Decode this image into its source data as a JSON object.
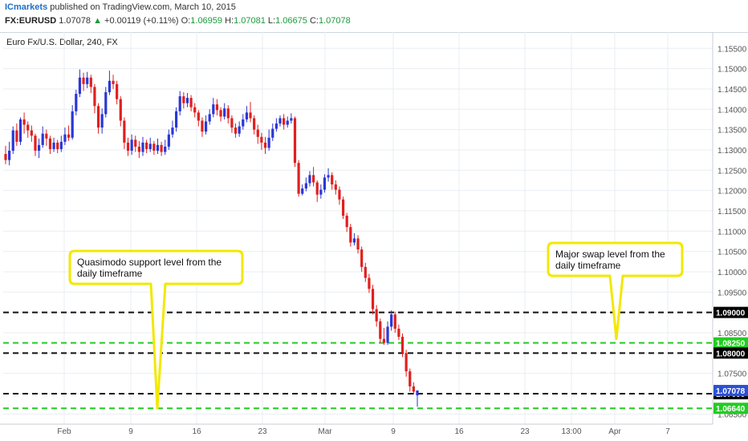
{
  "header": {
    "publisher": "ICmarkets",
    "published_text": "published on TradingView.com, March 10, 2015",
    "symbol": "FX:EURUSD",
    "last": "1.07078",
    "arrow_icon": "triangle-up-icon",
    "change": "+0.00119 (+0.11%)",
    "o_label": "O:",
    "o_value": "1.06959",
    "h_label": "H:",
    "h_value": "1.07081",
    "l_label": "L:",
    "l_value": "1.06675",
    "c_label": "C:",
    "c_value": "1.07078"
  },
  "colors": {
    "bull": "#2a37d6",
    "bear": "#e0201e",
    "black_line": "#111111",
    "green_line": "#22cc22",
    "callout_border": "#f2e800",
    "callout_fill": "#ffffff",
    "grid": "#e9edf2",
    "price_tag": "#2b50d6"
  },
  "chart_data": {
    "type": "candlestick",
    "title": "Euro Fx/U.S. Dollar, 240, FX",
    "ylim": [
      1.0625,
      1.159
    ],
    "y_ticks": [
      "1.15500",
      "1.15000",
      "1.14500",
      "1.14000",
      "1.13500",
      "1.13000",
      "1.12500",
      "1.12000",
      "1.11500",
      "1.11000",
      "1.10500",
      "1.10000",
      "1.09500",
      "1.09000",
      "1.08500",
      "1.08000",
      "1.07500",
      "1.07000",
      "1.06500"
    ],
    "x_ticks": [
      "Feb",
      "9",
      "16",
      "23",
      "Mar",
      "9",
      "16",
      "23",
      "13:00",
      "Apr",
      "7"
    ],
    "bars": [
      [
        1.129,
        1.1275,
        1.131,
        1.1265
      ],
      [
        1.1275,
        1.1298,
        1.132,
        1.1262
      ],
      [
        1.1298,
        1.1348,
        1.1358,
        1.129
      ],
      [
        1.1348,
        1.132,
        1.1365,
        1.131
      ],
      [
        1.132,
        1.1375,
        1.138,
        1.1312
      ],
      [
        1.1375,
        1.1362,
        1.1392,
        1.134
      ],
      [
        1.1362,
        1.1348,
        1.137,
        1.133
      ],
      [
        1.1348,
        1.1335,
        1.136,
        1.132
      ],
      [
        1.1335,
        1.1298,
        1.134,
        1.1285
      ],
      [
        1.1298,
        1.1312,
        1.1328,
        1.128
      ],
      [
        1.1312,
        1.134,
        1.1358,
        1.1305
      ],
      [
        1.134,
        1.1328,
        1.135,
        1.131
      ],
      [
        1.1328,
        1.1302,
        1.1335,
        1.129
      ],
      [
        1.1302,
        1.1318,
        1.133,
        1.1295
      ],
      [
        1.1318,
        1.1302,
        1.1325,
        1.1292
      ],
      [
        1.1302,
        1.132,
        1.1335,
        1.1295
      ],
      [
        1.132,
        1.1338,
        1.1355,
        1.1312
      ],
      [
        1.1338,
        1.133,
        1.136,
        1.1322
      ],
      [
        1.133,
        1.1395,
        1.141,
        1.1325
      ],
      [
        1.1395,
        1.1438,
        1.1448,
        1.1385
      ],
      [
        1.1438,
        1.1478,
        1.1498,
        1.143
      ],
      [
        1.1478,
        1.1462,
        1.149,
        1.1445
      ],
      [
        1.1462,
        1.1478,
        1.1492,
        1.1452
      ],
      [
        1.1478,
        1.1455,
        1.1485,
        1.144
      ],
      [
        1.1455,
        1.1408,
        1.1462,
        1.139
      ],
      [
        1.1408,
        1.1355,
        1.1415,
        1.134
      ],
      [
        1.1355,
        1.1388,
        1.1402,
        1.134
      ],
      [
        1.1388,
        1.1442,
        1.1455,
        1.138
      ],
      [
        1.1442,
        1.147,
        1.1495,
        1.1435
      ],
      [
        1.147,
        1.1462,
        1.1485,
        1.145
      ],
      [
        1.1462,
        1.1425,
        1.147,
        1.1412
      ],
      [
        1.1425,
        1.1372,
        1.1432,
        1.1358
      ],
      [
        1.1372,
        1.1318,
        1.138,
        1.1302
      ],
      [
        1.1318,
        1.1298,
        1.133,
        1.1285
      ],
      [
        1.1298,
        1.1325,
        1.1338,
        1.1288
      ],
      [
        1.1325,
        1.1308,
        1.1335,
        1.1295
      ],
      [
        1.1308,
        1.1295,
        1.1322,
        1.128
      ],
      [
        1.1295,
        1.1318,
        1.1332,
        1.1285
      ],
      [
        1.1318,
        1.1302,
        1.1325,
        1.1292
      ],
      [
        1.1302,
        1.1315,
        1.133,
        1.1295
      ],
      [
        1.1315,
        1.1298,
        1.1322,
        1.1288
      ],
      [
        1.1298,
        1.1312,
        1.1328,
        1.129
      ],
      [
        1.1312,
        1.1295,
        1.132,
        1.1285
      ],
      [
        1.1295,
        1.1308,
        1.1325,
        1.1288
      ],
      [
        1.1308,
        1.1338,
        1.135,
        1.13
      ],
      [
        1.1338,
        1.1355,
        1.1372,
        1.133
      ],
      [
        1.1355,
        1.1395,
        1.1405,
        1.1345
      ],
      [
        1.1395,
        1.1432,
        1.1445,
        1.1385
      ],
      [
        1.1432,
        1.1415,
        1.1442,
        1.1402
      ],
      [
        1.1415,
        1.1428,
        1.144,
        1.1405
      ],
      [
        1.1428,
        1.1405,
        1.1435,
        1.1395
      ],
      [
        1.1405,
        1.1392,
        1.1415,
        1.138
      ],
      [
        1.1392,
        1.1372,
        1.1398,
        1.1358
      ],
      [
        1.1372,
        1.1345,
        1.138,
        1.1332
      ],
      [
        1.1345,
        1.137,
        1.1385,
        1.1338
      ],
      [
        1.137,
        1.1388,
        1.14,
        1.1362
      ],
      [
        1.1388,
        1.1412,
        1.1428,
        1.138
      ],
      [
        1.1412,
        1.1398,
        1.1425,
        1.1385
      ],
      [
        1.1398,
        1.1382,
        1.1405,
        1.137
      ],
      [
        1.1382,
        1.1402,
        1.1415,
        1.1375
      ],
      [
        1.1402,
        1.1378,
        1.141,
        1.1365
      ],
      [
        1.1378,
        1.1355,
        1.1385,
        1.1342
      ],
      [
        1.1355,
        1.134,
        1.1365,
        1.133
      ],
      [
        1.134,
        1.1358,
        1.137,
        1.1332
      ],
      [
        1.1358,
        1.1375,
        1.1388,
        1.135
      ],
      [
        1.1375,
        1.1392,
        1.1408,
        1.1368
      ],
      [
        1.1392,
        1.1378,
        1.1418,
        1.1368
      ],
      [
        1.1378,
        1.135,
        1.1385,
        1.1338
      ],
      [
        1.135,
        1.1332,
        1.1362,
        1.1315
      ],
      [
        1.1332,
        1.1318,
        1.1342,
        1.13
      ],
      [
        1.1318,
        1.1305,
        1.1332,
        1.129
      ],
      [
        1.1305,
        1.133,
        1.135,
        1.1298
      ],
      [
        1.133,
        1.1352,
        1.1365,
        1.1322
      ],
      [
        1.1352,
        1.1365,
        1.1378,
        1.1345
      ],
      [
        1.1365,
        1.1378,
        1.1385,
        1.1358
      ],
      [
        1.1378,
        1.1362,
        1.1388,
        1.135
      ],
      [
        1.1362,
        1.1372,
        1.1382,
        1.1355
      ],
      [
        1.1372,
        1.1378,
        1.139,
        1.1365
      ],
      [
        1.1378,
        1.1268,
        1.1382,
        1.1258
      ],
      [
        1.1268,
        1.1192,
        1.1275,
        1.1185
      ],
      [
        1.1192,
        1.1205,
        1.1215,
        1.1188
      ],
      [
        1.1205,
        1.1218,
        1.1232,
        1.1198
      ],
      [
        1.1218,
        1.1238,
        1.1248,
        1.121
      ],
      [
        1.1238,
        1.122,
        1.1258,
        1.121
      ],
      [
        1.122,
        1.119,
        1.1225,
        1.1172
      ],
      [
        1.119,
        1.1202,
        1.1215,
        1.118
      ],
      [
        1.1202,
        1.1232,
        1.124,
        1.1195
      ],
      [
        1.1232,
        1.1238,
        1.1255,
        1.1222
      ],
      [
        1.1238,
        1.1215,
        1.1245,
        1.1202
      ],
      [
        1.1215,
        1.1202,
        1.1225,
        1.119
      ],
      [
        1.1202,
        1.1178,
        1.121,
        1.1165
      ],
      [
        1.1178,
        1.1138,
        1.1185,
        1.113
      ],
      [
        1.1138,
        1.111,
        1.1145,
        1.1098
      ],
      [
        1.111,
        1.1072,
        1.1118,
        1.1062
      ],
      [
        1.1072,
        1.1082,
        1.1095,
        1.1065
      ],
      [
        1.1082,
        1.1055,
        1.109,
        1.1045
      ],
      [
        1.1055,
        1.1012,
        1.1062,
        1.1
      ],
      [
        1.1012,
        1.0985,
        1.1022,
        1.0975
      ],
      [
        1.0985,
        1.0958,
        1.0995,
        1.0948
      ],
      [
        1.0958,
        1.0908,
        1.0968,
        1.0895
      ],
      [
        1.0908,
        1.0878,
        1.0918,
        1.0865
      ],
      [
        1.0878,
        1.0835,
        1.0885,
        1.0825
      ],
      [
        1.0835,
        1.0825,
        1.0862,
        1.082
      ],
      [
        1.0825,
        1.0865,
        1.0878,
        1.082
      ],
      [
        1.0865,
        1.0895,
        1.0905,
        1.0855
      ],
      [
        1.0895,
        1.086,
        1.0902,
        1.085
      ],
      [
        1.086,
        1.084,
        1.087,
        1.0832
      ],
      [
        1.084,
        1.08,
        1.0848,
        1.079
      ],
      [
        1.08,
        1.0755,
        1.0808,
        1.0742
      ],
      [
        1.0755,
        1.0718,
        1.0762,
        1.0705
      ],
      [
        1.0718,
        1.0705,
        1.0728,
        1.0698
      ],
      [
        1.0696,
        1.0708,
        1.0708,
        1.0668
      ]
    ],
    "levels": [
      {
        "price": "1.09000",
        "color": "black",
        "style": "dashed"
      },
      {
        "price": "1.08250",
        "color": "green",
        "style": "dashed"
      },
      {
        "price": "1.08000",
        "color": "black",
        "style": "dashed"
      },
      {
        "price": "1.07000",
        "color": "black",
        "style": "dashed"
      },
      {
        "price": "1.06640",
        "color": "green",
        "style": "dashed"
      }
    ],
    "last_price_label": "1.07078",
    "annotations": [
      {
        "text": "Quasimodo support level from the daily timeframe",
        "line1": "Quasimodo support level from the",
        "line2": "daily timeframe",
        "pointer_to_price": 1.0664
      },
      {
        "text": "Major swap level from the daily timeframe",
        "line1": "Major swap level from the",
        "line2": "daily timeframe",
        "pointer_to_price": 1.0835
      }
    ]
  }
}
